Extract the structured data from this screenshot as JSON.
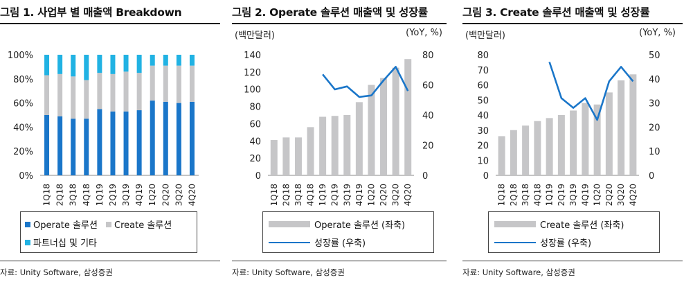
{
  "colors": {
    "operate": "#1a76c9",
    "create": "#c6c6c8",
    "partner": "#21b2e3",
    "bar_gray": "#c6c6c8",
    "line_blue": "#1a76c9"
  },
  "source_text": "자료: Unity Software, 삼성증권",
  "fig1": {
    "title": "그림 1.  사업부 별 매출액 Breakdown",
    "legend": [
      "Operate 솔루션",
      "Create 솔루션",
      "파트너십 및 기타"
    ]
  },
  "fig2": {
    "title": "그림 2.  Operate 솔루션 매출액 및 성장률",
    "unit_left": "(백만달러)",
    "unit_right": "(YoY, %)",
    "legend_bar": "Operate 솔루션 (좌축)",
    "legend_line": "성장률 (우축)"
  },
  "fig3": {
    "title": "그림 3.  Create 솔루션 매출액 및 성장률",
    "unit_left": "(백만달러)",
    "unit_right": "(YoY, %)",
    "legend_bar": "Create 솔루션 (좌축)",
    "legend_line": "성장률 (우축)"
  },
  "chart_data": [
    {
      "type": "bar",
      "stacked": true,
      "title": "사업부 별 매출액 Breakdown",
      "categories": [
        "1Q18",
        "2Q18",
        "3Q18",
        "4Q18",
        "1Q19",
        "2Q19",
        "3Q19",
        "4Q19",
        "1Q20",
        "2Q20",
        "3Q20",
        "4Q20"
      ],
      "series": [
        {
          "name": "Operate 솔루션",
          "values": [
            50,
            49,
            47,
            47,
            55,
            53,
            53,
            54,
            62,
            61,
            60,
            61
          ]
        },
        {
          "name": "Create 솔루션",
          "values": [
            33,
            35,
            35,
            32,
            30,
            31,
            33,
            31,
            29,
            30,
            31,
            30
          ]
        },
        {
          "name": "파트너십 및 기타",
          "values": [
            17,
            16,
            18,
            21,
            15,
            16,
            14,
            15,
            9,
            9,
            9,
            9
          ]
        }
      ],
      "yticks": [
        "0%",
        "20%",
        "40%",
        "60%",
        "80%",
        "100%"
      ],
      "ylim": [
        0,
        100
      ]
    },
    {
      "type": "bar",
      "title": "Operate 솔루션 매출액 및 성장률",
      "categories": [
        "1Q18",
        "2Q18",
        "3Q18",
        "4Q18",
        "1Q19",
        "2Q19",
        "3Q19",
        "4Q19",
        "1Q20",
        "2Q20",
        "3Q20",
        "4Q20"
      ],
      "series": [
        {
          "name": "Operate 솔루션 (좌축)",
          "type": "bar",
          "axis": "left",
          "values": [
            41,
            44,
            44,
            56,
            68,
            69,
            70,
            85,
            105,
            113,
            125,
            135
          ]
        },
        {
          "name": "성장률 (우축)",
          "type": "line",
          "axis": "right",
          "values": [
            null,
            null,
            null,
            null,
            67,
            57,
            59,
            52,
            53,
            63,
            72,
            56
          ]
        }
      ],
      "ylim": [
        0,
        140
      ],
      "y2lim": [
        0,
        80
      ],
      "yticks": [
        "0",
        "20",
        "40",
        "60",
        "80",
        "100",
        "120",
        "140"
      ],
      "y2ticks": [
        "0",
        "20",
        "40",
        "60",
        "80"
      ]
    },
    {
      "type": "bar",
      "title": "Create 솔루션 매출액 및 성장률",
      "categories": [
        "1Q18",
        "2Q18",
        "3Q18",
        "4Q18",
        "1Q19",
        "2Q19",
        "3Q19",
        "4Q19",
        "1Q20",
        "2Q20",
        "3Q20",
        "4Q20"
      ],
      "series": [
        {
          "name": "Create 솔루션 (좌축)",
          "type": "bar",
          "axis": "left",
          "values": [
            26,
            30,
            33,
            36,
            38,
            40,
            43,
            48,
            47,
            55,
            63,
            67
          ]
        },
        {
          "name": "성장률 (우축)",
          "type": "line",
          "axis": "right",
          "values": [
            null,
            null,
            null,
            null,
            47,
            32,
            28,
            32,
            23,
            39,
            45,
            39
          ]
        }
      ],
      "ylim": [
        0,
        80
      ],
      "y2lim": [
        0,
        50
      ],
      "yticks": [
        "0",
        "10",
        "20",
        "30",
        "40",
        "50",
        "60",
        "70",
        "80"
      ],
      "y2ticks": [
        "0",
        "10",
        "20",
        "30",
        "40",
        "50"
      ]
    }
  ]
}
